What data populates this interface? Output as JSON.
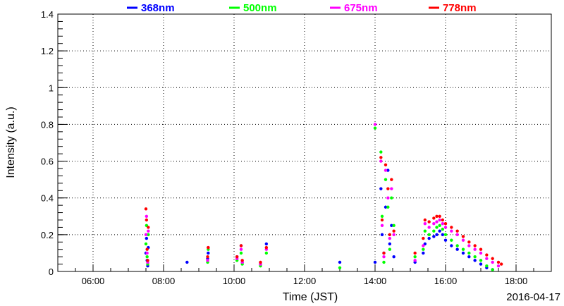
{
  "chart_data": {
    "type": "scatter",
    "xlabel": "Time (JST)",
    "ylabel": "Intensity (a.u.)",
    "date": "2016-04-17",
    "xlim": [
      "05:00",
      "19:00"
    ],
    "ylim": [
      0,
      1.4
    ],
    "x_ticks": [
      "06:00",
      "08:00",
      "10:00",
      "12:00",
      "14:00",
      "16:00",
      "18:00"
    ],
    "y_ticks": [
      "0",
      "0.2",
      "0.4",
      "0.6",
      "0.8",
      "1",
      "1.2",
      "1.4"
    ],
    "grid": true,
    "legend_position": "top",
    "series": [
      {
        "name": "368nm",
        "color": "#0000ff",
        "points": [
          [
            "07:30",
            0.1
          ],
          [
            "07:31",
            0.18
          ],
          [
            "07:32",
            0.06
          ],
          [
            "07:33",
            0.03
          ],
          [
            "07:34",
            0.13
          ],
          [
            "08:40",
            0.05
          ],
          [
            "09:15",
            0.07
          ],
          [
            "09:16",
            0.1
          ],
          [
            "10:05",
            0.08
          ],
          [
            "10:12",
            0.14
          ],
          [
            "10:14",
            0.05
          ],
          [
            "10:45",
            0.04
          ],
          [
            "10:55",
            0.15
          ],
          [
            "13:00",
            0.05
          ],
          [
            "14:00",
            0.05
          ],
          [
            "14:10",
            0.45
          ],
          [
            "14:12",
            0.2
          ],
          [
            "14:15",
            0.1
          ],
          [
            "14:18",
            0.35
          ],
          [
            "14:22",
            0.55
          ],
          [
            "14:25",
            0.15
          ],
          [
            "14:28",
            0.25
          ],
          [
            "14:32",
            0.08
          ],
          [
            "15:08",
            0.05
          ],
          [
            "15:22",
            0.1
          ],
          [
            "15:25",
            0.15
          ],
          [
            "15:32",
            0.18
          ],
          [
            "15:40",
            0.19
          ],
          [
            "15:45",
            0.2
          ],
          [
            "15:50",
            0.22
          ],
          [
            "15:55",
            0.2
          ],
          [
            "16:00",
            0.17
          ],
          [
            "16:10",
            0.14
          ],
          [
            "16:20",
            0.12
          ],
          [
            "16:30",
            0.1
          ],
          [
            "16:40",
            0.08
          ],
          [
            "16:50",
            0.06
          ],
          [
            "17:00",
            0.04
          ],
          [
            "17:10",
            0.02
          ],
          [
            "17:20",
            0.01
          ]
        ]
      },
      {
        "name": "500nm",
        "color": "#00ff00",
        "points": [
          [
            "07:30",
            0.15
          ],
          [
            "07:31",
            0.25
          ],
          [
            "07:32",
            0.08
          ],
          [
            "07:33",
            0.04
          ],
          [
            "07:34",
            0.2
          ],
          [
            "09:15",
            0.05
          ],
          [
            "09:16",
            0.12
          ],
          [
            "10:05",
            0.06
          ],
          [
            "10:12",
            0.1
          ],
          [
            "10:14",
            0.04
          ],
          [
            "10:45",
            0.03
          ],
          [
            "10:55",
            0.1
          ],
          [
            "13:00",
            0.02
          ],
          [
            "14:00",
            0.78
          ],
          [
            "14:10",
            0.65
          ],
          [
            "14:12",
            0.3
          ],
          [
            "14:15",
            0.05
          ],
          [
            "14:18",
            0.5
          ],
          [
            "14:22",
            0.35
          ],
          [
            "14:25",
            0.12
          ],
          [
            "14:28",
            0.4
          ],
          [
            "14:32",
            0.25
          ],
          [
            "15:08",
            0.08
          ],
          [
            "15:22",
            0.12
          ],
          [
            "15:25",
            0.22
          ],
          [
            "15:32",
            0.2
          ],
          [
            "15:40",
            0.22
          ],
          [
            "15:45",
            0.24
          ],
          [
            "15:50",
            0.25
          ],
          [
            "15:55",
            0.23
          ],
          [
            "16:00",
            0.2
          ],
          [
            "16:10",
            0.17
          ],
          [
            "16:20",
            0.14
          ],
          [
            "16:30",
            0.12
          ],
          [
            "16:40",
            0.1
          ],
          [
            "16:50",
            0.08
          ],
          [
            "17:00",
            0.06
          ],
          [
            "17:10",
            0.03
          ],
          [
            "17:20",
            0.01
          ]
        ]
      },
      {
        "name": "675nm",
        "color": "#ff00ff",
        "points": [
          [
            "07:30",
            0.2
          ],
          [
            "07:31",
            0.3
          ],
          [
            "07:32",
            0.1
          ],
          [
            "07:33",
            0.05
          ],
          [
            "07:34",
            0.22
          ],
          [
            "09:15",
            0.06
          ],
          [
            "09:16",
            0.13
          ],
          [
            "10:05",
            0.07
          ],
          [
            "10:12",
            0.12
          ],
          [
            "10:14",
            0.05
          ],
          [
            "10:45",
            0.04
          ],
          [
            "10:55",
            0.12
          ],
          [
            "14:00",
            0.8
          ],
          [
            "14:10",
            0.6
          ],
          [
            "14:12",
            0.25
          ],
          [
            "14:15",
            0.08
          ],
          [
            "14:18",
            0.55
          ],
          [
            "14:22",
            0.4
          ],
          [
            "14:25",
            0.18
          ],
          [
            "14:28",
            0.45
          ],
          [
            "14:32",
            0.2
          ],
          [
            "15:08",
            0.06
          ],
          [
            "15:22",
            0.14
          ],
          [
            "15:25",
            0.26
          ],
          [
            "15:32",
            0.24
          ],
          [
            "15:40",
            0.26
          ],
          [
            "15:45",
            0.27
          ],
          [
            "15:50",
            0.28
          ],
          [
            "15:55",
            0.26
          ],
          [
            "16:00",
            0.24
          ],
          [
            "16:10",
            0.22
          ],
          [
            "16:20",
            0.2
          ],
          [
            "16:30",
            0.17
          ],
          [
            "16:40",
            0.14
          ],
          [
            "16:50",
            0.12
          ],
          [
            "17:00",
            0.1
          ],
          [
            "17:10",
            0.07
          ],
          [
            "17:20",
            0.05
          ],
          [
            "17:30",
            0.03
          ]
        ]
      },
      {
        "name": "778nm",
        "color": "#ff0000",
        "points": [
          [
            "07:30",
            0.34
          ],
          [
            "07:31",
            0.28
          ],
          [
            "07:32",
            0.12
          ],
          [
            "07:33",
            0.06
          ],
          [
            "07:34",
            0.24
          ],
          [
            "09:15",
            0.08
          ],
          [
            "09:16",
            0.13
          ],
          [
            "10:05",
            0.08
          ],
          [
            "10:12",
            0.14
          ],
          [
            "10:14",
            0.06
          ],
          [
            "10:45",
            0.05
          ],
          [
            "10:55",
            0.13
          ],
          [
            "14:10",
            0.62
          ],
          [
            "14:12",
            0.28
          ],
          [
            "14:15",
            0.1
          ],
          [
            "14:18",
            0.58
          ],
          [
            "14:22",
            0.45
          ],
          [
            "14:25",
            0.2
          ],
          [
            "14:28",
            0.5
          ],
          [
            "14:32",
            0.22
          ],
          [
            "15:08",
            0.1
          ],
          [
            "15:22",
            0.18
          ],
          [
            "15:25",
            0.28
          ],
          [
            "15:32",
            0.27
          ],
          [
            "15:40",
            0.29
          ],
          [
            "15:45",
            0.3
          ],
          [
            "15:50",
            0.3
          ],
          [
            "15:55",
            0.28
          ],
          [
            "16:00",
            0.26
          ],
          [
            "16:10",
            0.24
          ],
          [
            "16:20",
            0.22
          ],
          [
            "16:30",
            0.19
          ],
          [
            "16:40",
            0.16
          ],
          [
            "16:50",
            0.14
          ],
          [
            "17:00",
            0.12
          ],
          [
            "17:10",
            0.09
          ],
          [
            "17:20",
            0.07
          ],
          [
            "17:30",
            0.05
          ],
          [
            "17:35",
            0.04
          ]
        ]
      }
    ]
  }
}
